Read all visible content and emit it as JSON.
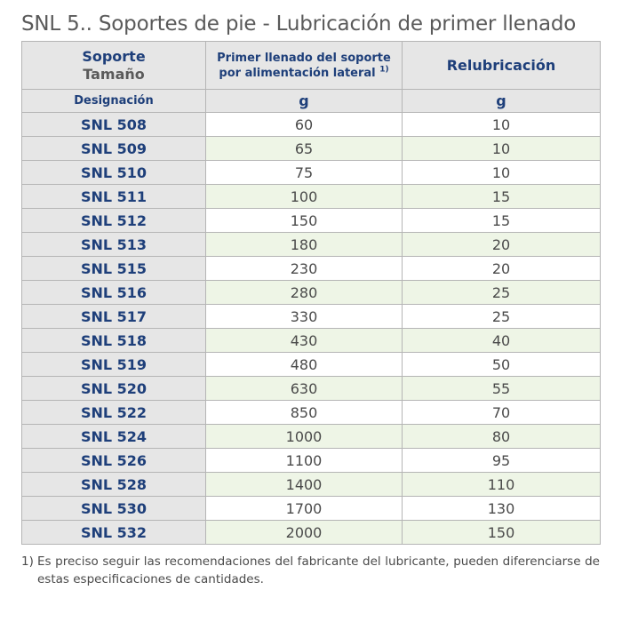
{
  "title": "SNL 5.. Soportes de pie - Lubricación de primer llenado",
  "header": {
    "col1_line1": "Soporte",
    "col1_line2": "Tamaño",
    "col2_line1": "Primer llenado del soporte",
    "col2_line2": "por alimentación lateral",
    "col2_note": "1)",
    "col3": "Relubricación",
    "sub_col1": "Designación",
    "sub_col2": "g",
    "sub_col3": "g"
  },
  "rows": [
    {
      "designation": "SNL 508",
      "first_fill": "60",
      "relub": "10"
    },
    {
      "designation": "SNL 509",
      "first_fill": "65",
      "relub": "10"
    },
    {
      "designation": "SNL 510",
      "first_fill": "75",
      "relub": "10"
    },
    {
      "designation": "SNL 511",
      "first_fill": "100",
      "relub": "15"
    },
    {
      "designation": "SNL 512",
      "first_fill": "150",
      "relub": "15"
    },
    {
      "designation": "SNL 513",
      "first_fill": "180",
      "relub": "20"
    },
    {
      "designation": "SNL 515",
      "first_fill": "230",
      "relub": "20"
    },
    {
      "designation": "SNL 516",
      "first_fill": "280",
      "relub": "25"
    },
    {
      "designation": "SNL 517",
      "first_fill": "330",
      "relub": "25"
    },
    {
      "designation": "SNL 518",
      "first_fill": "430",
      "relub": "40"
    },
    {
      "designation": "SNL 519",
      "first_fill": "480",
      "relub": "50"
    },
    {
      "designation": "SNL 520",
      "first_fill": "630",
      "relub": "55"
    },
    {
      "designation": "SNL 522",
      "first_fill": "850",
      "relub": "70"
    },
    {
      "designation": "SNL 524",
      "first_fill": "1000",
      "relub": "80"
    },
    {
      "designation": "SNL 526",
      "first_fill": "1100",
      "relub": "95"
    },
    {
      "designation": "SNL 528",
      "first_fill": "1400",
      "relub": "110"
    },
    {
      "designation": "SNL 530",
      "first_fill": "1700",
      "relub": "130"
    },
    {
      "designation": "SNL 532",
      "first_fill": "2000",
      "relub": "150"
    }
  ],
  "footnote": {
    "mark": "1)",
    "text": "Es preciso seguir las recomendaciones del fabricante del lubricante, pueden diferenciarse de estas especificaciones de cantidades."
  },
  "colors": {
    "header_text": "#1e3f7a",
    "header_bg": "#e6e6e6",
    "alt_row_bg": "#eef5e6"
  }
}
